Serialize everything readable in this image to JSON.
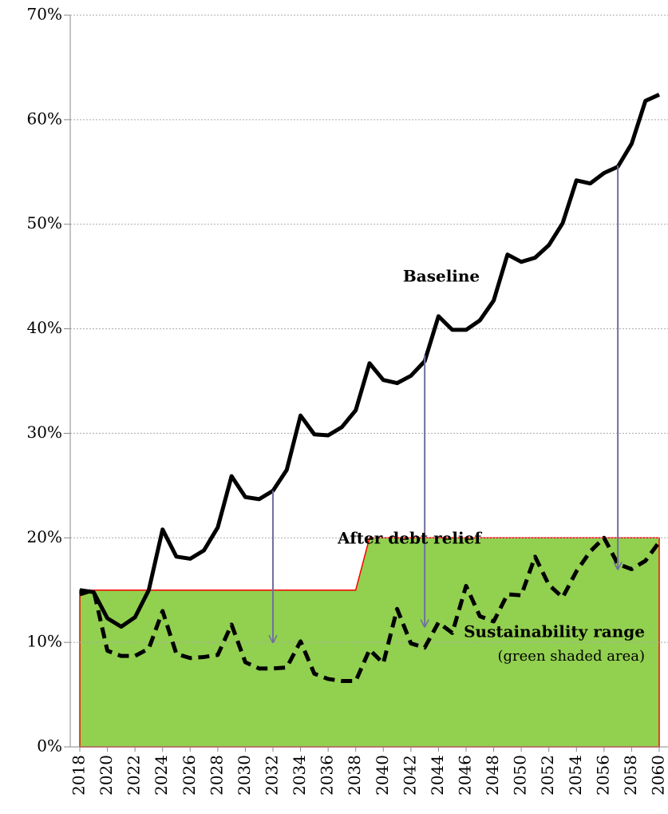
{
  "chart_data": {
    "type": "line",
    "x": [
      2018,
      2019,
      2020,
      2021,
      2022,
      2023,
      2024,
      2025,
      2026,
      2027,
      2028,
      2029,
      2030,
      2031,
      2032,
      2033,
      2034,
      2035,
      2036,
      2037,
      2038,
      2039,
      2040,
      2041,
      2042,
      2043,
      2044,
      2045,
      2046,
      2047,
      2048,
      2049,
      2050,
      2051,
      2052,
      2053,
      2054,
      2055,
      2056,
      2057,
      2058,
      2059,
      2060
    ],
    "series": [
      {
        "name": "Baseline",
        "color": "#000000",
        "dash": false,
        "values": [
          15,
          14.8,
          12.3,
          11.5,
          12.4,
          15,
          20.8,
          18.2,
          18,
          18.8,
          21,
          25.9,
          23.9,
          23.7,
          24.5,
          26.5,
          31.7,
          29.9,
          29.8,
          30.6,
          32.2,
          36.7,
          35.1,
          34.8,
          35.5,
          36.9,
          41.2,
          39.9,
          39.9,
          40.8,
          42.7,
          47.1,
          46.4,
          46.8,
          48,
          50.1,
          54.2,
          53.9,
          54.9,
          55.5,
          57.7,
          61.8,
          62.4
        ]
      },
      {
        "name": "After debt relief",
        "color": "#000000",
        "dash": true,
        "values": [
          14.6,
          15,
          9.2,
          8.7,
          8.7,
          9.4,
          13,
          8.9,
          8.5,
          8.6,
          8.8,
          11.7,
          8.1,
          7.5,
          7.5,
          7.6,
          10.1,
          7,
          6.5,
          6.3,
          6.3,
          9.3,
          8,
          13.2,
          9.9,
          9.5,
          11.9,
          10.9,
          15.4,
          12.5,
          12,
          14.6,
          14.5,
          18.2,
          15.5,
          14.3,
          16.8,
          18.7,
          20,
          17.5,
          17,
          17.8,
          19.6
        ]
      }
    ],
    "range": {
      "color": "#92d050",
      "edge": "#ff0000",
      "values": [
        15,
        15,
        15,
        15,
        15,
        15,
        15,
        15,
        15,
        15,
        15,
        15,
        15,
        15,
        15,
        15,
        15,
        15,
        15,
        15,
        15,
        20,
        20,
        20,
        20,
        20,
        20,
        20,
        20,
        20,
        20,
        20,
        20,
        20,
        20,
        20,
        20,
        20,
        20,
        20,
        20,
        20,
        20
      ]
    },
    "annotations": [
      "Sustainability range",
      "(green shaded area)"
    ],
    "arrows": [
      {
        "x": 2032,
        "from": 24.5,
        "to": 10
      },
      {
        "x": 2043,
        "from": 37.5,
        "to": 11.5
      },
      {
        "x": 2057,
        "from": 55.6,
        "to": 17
      }
    ],
    "arrow_color": "#7070a0",
    "xlim": [
      2018,
      2060
    ],
    "xticks": [
      2018,
      2020,
      2022,
      2024,
      2026,
      2028,
      2030,
      2032,
      2034,
      2036,
      2038,
      2040,
      2042,
      2044,
      2046,
      2048,
      2050,
      2052,
      2054,
      2056,
      2058,
      2060
    ],
    "ylim": [
      0,
      70
    ],
    "yticks": [
      {
        "value": 0,
        "label": "0%"
      },
      {
        "value": 10,
        "label": "10%"
      },
      {
        "value": 20,
        "label": "20%"
      },
      {
        "value": 30,
        "label": "30%"
      },
      {
        "value": 40,
        "label": "40%"
      },
      {
        "value": 50,
        "label": "50%"
      },
      {
        "value": 60,
        "label": "60%"
      },
      {
        "value": 70,
        "label": "70%"
      }
    ],
    "grid": true
  }
}
